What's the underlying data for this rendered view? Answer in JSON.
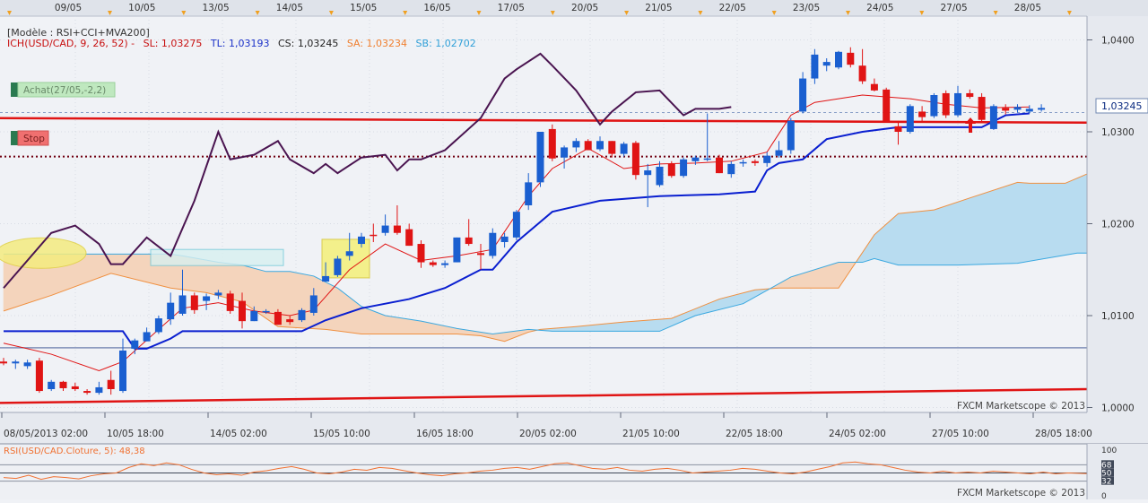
{
  "top_dates": [
    "09/05",
    "10/05",
    "13/05",
    "14/05",
    "15/05",
    "16/05",
    "17/05",
    "20/05",
    "21/05",
    "22/05",
    "23/05",
    "24/05",
    "27/05",
    "28/05"
  ],
  "info": {
    "model": "[Modèle : RSI+CCI+MVA200]",
    "ich_prefix": "ICH(USD/CAD, 9, 26, 52)  -",
    "sl": "SL: 1,03275",
    "tl": "TL: 1,03193",
    "cs": "CS: 1,03245",
    "sa": "SA: 1,03234",
    "sb": "SB: 1,02702"
  },
  "signals": {
    "buy": "Achat(27/05,-2,2)",
    "stop": "Stop"
  },
  "watermark": "FXCM Marketscope © 2013",
  "price_tag": "1,03245",
  "colors": {
    "bull": "#1a5fd0",
    "bear": "#e01414",
    "tenkan": "#e01414",
    "kijun": "#0a1fd0",
    "chikou": "#4a1450",
    "senkou_a": "#f09040",
    "senkou_b": "#3aa8e0",
    "cloud_bull": "#b8dcf0",
    "cloud_bear": "#f4d4bc",
    "grid": "#d8dce4"
  },
  "bottom_labels": [
    "08/05/2013 02:00",
    "10/05 18:00",
    "14/05 02:00",
    "15/05 10:00",
    "16/05 18:00",
    "20/05 02:00",
    "21/05 10:00",
    "22/05 18:00",
    "24/05 02:00",
    "27/05 10:00",
    "28/05 18:00"
  ],
  "rsi": {
    "label": "RSI(USD/CAD.Cloture, 5): 48,38",
    "ticks": [
      "100",
      "68",
      "50",
      "32",
      "0"
    ]
  },
  "chart_data": {
    "type": "candlestick",
    "symbol": "USD/CAD",
    "ylim": [
      0.9995,
      1.0425
    ],
    "y_ticks": [
      "1,0400",
      "1,0300",
      "1,0200",
      "1,0100",
      "1,0000"
    ],
    "candles": [
      {
        "o": 1.005,
        "h": 1.0054,
        "l": 1.0046,
        "c": 1.0048
      },
      {
        "o": 1.0048,
        "h": 1.0052,
        "l": 1.0042,
        "c": 1.005
      },
      {
        "o": 1.0045,
        "h": 1.0052,
        "l": 1.0042,
        "c": 1.0049
      },
      {
        "o": 1.0051,
        "h": 1.0054,
        "l": 1.0016,
        "c": 1.0018
      },
      {
        "o": 1.002,
        "h": 1.003,
        "l": 1.0018,
        "c": 1.0028
      },
      {
        "o": 1.0028,
        "h": 1.0029,
        "l": 1.0018,
        "c": 1.0021
      },
      {
        "o": 1.0023,
        "h": 1.0027,
        "l": 1.0018,
        "c": 1.002
      },
      {
        "o": 1.0018,
        "h": 1.002,
        "l": 1.0014,
        "c": 1.0016
      },
      {
        "o": 1.0016,
        "h": 1.0028,
        "l": 1.0014,
        "c": 1.0022
      },
      {
        "o": 1.003,
        "h": 1.004,
        "l": 1.0014,
        "c": 1.002
      },
      {
        "o": 1.0018,
        "h": 1.0075,
        "l": 1.0016,
        "c": 1.0062
      },
      {
        "o": 1.0064,
        "h": 1.0075,
        "l": 1.0058,
        "c": 1.0073
      },
      {
        "o": 1.0072,
        "h": 1.0087,
        "l": 1.0072,
        "c": 1.0082
      },
      {
        "o": 1.0082,
        "h": 1.01,
        "l": 1.008,
        "c": 1.0097
      },
      {
        "o": 1.0096,
        "h": 1.0125,
        "l": 1.009,
        "c": 1.0114
      },
      {
        "o": 1.0102,
        "h": 1.015,
        "l": 1.01,
        "c": 1.0122
      },
      {
        "o": 1.0122,
        "h": 1.0125,
        "l": 1.0102,
        "c": 1.0106
      },
      {
        "o": 1.0116,
        "h": 1.0124,
        "l": 1.0106,
        "c": 1.0121
      },
      {
        "o": 1.0122,
        "h": 1.0128,
        "l": 1.0118,
        "c": 1.0125
      },
      {
        "o": 1.0124,
        "h": 1.0127,
        "l": 1.0102,
        "c": 1.0105
      },
      {
        "o": 1.0116,
        "h": 1.0125,
        "l": 1.0086,
        "c": 1.0094
      },
      {
        "o": 1.0094,
        "h": 1.011,
        "l": 1.0094,
        "c": 1.0105
      },
      {
        "o": 1.0104,
        "h": 1.0107,
        "l": 1.0102,
        "c": 1.0105
      },
      {
        "o": 1.0104,
        "h": 1.0107,
        "l": 1.009,
        "c": 1.009
      },
      {
        "o": 1.0096,
        "h": 1.01,
        "l": 1.009,
        "c": 1.0093
      },
      {
        "o": 1.0095,
        "h": 1.0108,
        "l": 1.0093,
        "c": 1.0106
      },
      {
        "o": 1.0103,
        "h": 1.013,
        "l": 1.01,
        "c": 1.0122
      },
      {
        "o": 1.0137,
        "h": 1.0158,
        "l": 1.0137,
        "c": 1.0143
      },
      {
        "o": 1.0144,
        "h": 1.0165,
        "l": 1.0142,
        "c": 1.0162
      },
      {
        "o": 1.0165,
        "h": 1.019,
        "l": 1.016,
        "c": 1.017
      },
      {
        "o": 1.0178,
        "h": 1.019,
        "l": 1.0174,
        "c": 1.0186
      },
      {
        "o": 1.0188,
        "h": 1.02,
        "l": 1.018,
        "c": 1.0187
      },
      {
        "o": 1.019,
        "h": 1.021,
        "l": 1.0187,
        "c": 1.0198
      },
      {
        "o": 1.0198,
        "h": 1.022,
        "l": 1.0188,
        "c": 1.019
      },
      {
        "o": 1.0194,
        "h": 1.02,
        "l": 1.0176,
        "c": 1.0176
      },
      {
        "o": 1.0178,
        "h": 1.0182,
        "l": 1.0152,
        "c": 1.0158
      },
      {
        "o": 1.0158,
        "h": 1.016,
        "l": 1.0153,
        "c": 1.0155
      },
      {
        "o": 1.0155,
        "h": 1.016,
        "l": 1.0152,
        "c": 1.0157
      },
      {
        "o": 1.0158,
        "h": 1.0185,
        "l": 1.0158,
        "c": 1.0185
      },
      {
        "o": 1.0185,
        "h": 1.0205,
        "l": 1.0176,
        "c": 1.0178
      },
      {
        "o": 1.0168,
        "h": 1.0178,
        "l": 1.015,
        "c": 1.0166
      },
      {
        "o": 1.0165,
        "h": 1.0195,
        "l": 1.0162,
        "c": 1.019
      },
      {
        "o": 1.018,
        "h": 1.019,
        "l": 1.0174,
        "c": 1.0186
      },
      {
        "o": 1.0185,
        "h": 1.0215,
        "l": 1.0182,
        "c": 1.0213
      },
      {
        "o": 1.022,
        "h": 1.0255,
        "l": 1.0215,
        "c": 1.0245
      },
      {
        "o": 1.0245,
        "h": 1.03,
        "l": 1.024,
        "c": 1.03
      },
      {
        "o": 1.0303,
        "h": 1.0308,
        "l": 1.0268,
        "c": 1.0271
      },
      {
        "o": 1.0272,
        "h": 1.0285,
        "l": 1.026,
        "c": 1.0283
      },
      {
        "o": 1.0283,
        "h": 1.0293,
        "l": 1.0278,
        "c": 1.029
      },
      {
        "o": 1.029,
        "h": 1.0292,
        "l": 1.028,
        "c": 1.028
      },
      {
        "o": 1.0281,
        "h": 1.0295,
        "l": 1.0279,
        "c": 1.029
      },
      {
        "o": 1.029,
        "h": 1.029,
        "l": 1.0272,
        "c": 1.0276
      },
      {
        "o": 1.0276,
        "h": 1.0289,
        "l": 1.0273,
        "c": 1.0287
      },
      {
        "o": 1.0288,
        "h": 1.029,
        "l": 1.0248,
        "c": 1.0253
      },
      {
        "o": 1.0253,
        "h": 1.0265,
        "l": 1.0218,
        "c": 1.0258
      },
      {
        "o": 1.0242,
        "h": 1.0268,
        "l": 1.024,
        "c": 1.0262
      },
      {
        "o": 1.0265,
        "h": 1.0268,
        "l": 1.025,
        "c": 1.0252
      },
      {
        "o": 1.0252,
        "h": 1.0272,
        "l": 1.025,
        "c": 1.027
      },
      {
        "o": 1.0268,
        "h": 1.0274,
        "l": 1.0264,
        "c": 1.0272
      },
      {
        "o": 1.027,
        "h": 1.032,
        "l": 1.0268,
        "c": 1.0271
      },
      {
        "o": 1.0272,
        "h": 1.0275,
        "l": 1.0255,
        "c": 1.0255
      },
      {
        "o": 1.0254,
        "h": 1.0268,
        "l": 1.025,
        "c": 1.0265
      },
      {
        "o": 1.0266,
        "h": 1.027,
        "l": 1.0262,
        "c": 1.0267
      },
      {
        "o": 1.0268,
        "h": 1.027,
        "l": 1.0263,
        "c": 1.0266
      },
      {
        "o": 1.0266,
        "h": 1.0278,
        "l": 1.0262,
        "c": 1.0274
      },
      {
        "o": 1.0274,
        "h": 1.029,
        "l": 1.0272,
        "c": 1.028
      },
      {
        "o": 1.028,
        "h": 1.0315,
        "l": 1.0276,
        "c": 1.0312
      },
      {
        "o": 1.0322,
        "h": 1.0365,
        "l": 1.032,
        "c": 1.0358
      },
      {
        "o": 1.0358,
        "h": 1.039,
        "l": 1.0352,
        "c": 1.0384
      },
      {
        "o": 1.0372,
        "h": 1.038,
        "l": 1.0366,
        "c": 1.0376
      },
      {
        "o": 1.037,
        "h": 1.0388,
        "l": 1.0368,
        "c": 1.0387
      },
      {
        "o": 1.0386,
        "h": 1.0392,
        "l": 1.037,
        "c": 1.0373
      },
      {
        "o": 1.0372,
        "h": 1.039,
        "l": 1.0352,
        "c": 1.0355
      },
      {
        "o": 1.0352,
        "h": 1.0358,
        "l": 1.0344,
        "c": 1.0345
      },
      {
        "o": 1.0346,
        "h": 1.0348,
        "l": 1.031,
        "c": 1.0312
      },
      {
        "o": 1.0306,
        "h": 1.0312,
        "l": 1.0286,
        "c": 1.03
      },
      {
        "o": 1.03,
        "h": 1.033,
        "l": 1.0298,
        "c": 1.0328
      },
      {
        "o": 1.0322,
        "h": 1.0328,
        "l": 1.031,
        "c": 1.0316
      },
      {
        "o": 1.0317,
        "h": 1.0342,
        "l": 1.0315,
        "c": 1.034
      },
      {
        "o": 1.0342,
        "h": 1.0345,
        "l": 1.0315,
        "c": 1.0318
      },
      {
        "o": 1.0318,
        "h": 1.035,
        "l": 1.0316,
        "c": 1.0342
      },
      {
        "o": 1.0342,
        "h": 1.0346,
        "l": 1.0336,
        "c": 1.0338
      },
      {
        "o": 1.0338,
        "h": 1.0342,
        "l": 1.031,
        "c": 1.0313
      },
      {
        "o": 1.0303,
        "h": 1.033,
        "l": 1.0302,
        "c": 1.0328
      },
      {
        "o": 1.0326,
        "h": 1.033,
        "l": 1.0319,
        "c": 1.0323
      },
      {
        "o": 1.0324,
        "h": 1.033,
        "l": 1.0321,
        "c": 1.0327
      },
      {
        "o": 1.0322,
        "h": 1.0329,
        "l": 1.032,
        "c": 1.0325
      },
      {
        "o": 1.0324,
        "h": 1.033,
        "l": 1.0322,
        "c": 1.0326
      }
    ],
    "tenkan": [
      [
        0,
        1.007
      ],
      [
        4,
        1.0058
      ],
      [
        8,
        1.004
      ],
      [
        10,
        1.005
      ],
      [
        13,
        1.0085
      ],
      [
        15,
        1.0108
      ],
      [
        18,
        1.0114
      ],
      [
        21,
        1.0105
      ],
      [
        24,
        1.01
      ],
      [
        26,
        1.0106
      ],
      [
        29,
        1.015
      ],
      [
        32,
        1.0178
      ],
      [
        35,
        1.016
      ],
      [
        38,
        1.0165
      ],
      [
        41,
        1.0172
      ],
      [
        44,
        1.023
      ],
      [
        46,
        1.026
      ],
      [
        49,
        1.0282
      ],
      [
        52,
        1.026
      ],
      [
        55,
        1.0265
      ],
      [
        58,
        1.0266
      ],
      [
        61,
        1.0268
      ],
      [
        64,
        1.0278
      ],
      [
        66,
        1.0318
      ],
      [
        68,
        1.0332
      ],
      [
        72,
        1.034
      ],
      [
        76,
        1.0336
      ],
      [
        79,
        1.033
      ],
      [
        82,
        1.0326
      ],
      [
        86,
        1.0327
      ]
    ],
    "kijun": [
      [
        0,
        1.0083
      ],
      [
        10,
        1.0083
      ],
      [
        11,
        1.0064
      ],
      [
        12,
        1.0064
      ],
      [
        14,
        1.0075
      ],
      [
        15,
        1.0083
      ],
      [
        21,
        1.0083
      ],
      [
        25,
        1.0083
      ],
      [
        27,
        1.0095
      ],
      [
        30,
        1.0108
      ],
      [
        34,
        1.0118
      ],
      [
        37,
        1.013
      ],
      [
        40,
        1.015
      ],
      [
        41,
        1.015
      ],
      [
        43,
        1.018
      ],
      [
        46,
        1.0213
      ],
      [
        50,
        1.0225
      ],
      [
        55,
        1.023
      ],
      [
        60,
        1.0232
      ],
      [
        63,
        1.0235
      ],
      [
        64,
        1.0258
      ],
      [
        65,
        1.0266
      ],
      [
        67,
        1.027
      ],
      [
        69,
        1.0292
      ],
      [
        72,
        1.03
      ],
      [
        75,
        1.0305
      ],
      [
        79,
        1.0305
      ],
      [
        82,
        1.0305
      ],
      [
        84,
        1.0318
      ],
      [
        86,
        1.032
      ]
    ],
    "chikou": [
      [
        0,
        1.013
      ],
      [
        4,
        1.019
      ],
      [
        6,
        1.0198
      ],
      [
        8,
        1.0178
      ],
      [
        9,
        1.0156
      ],
      [
        10,
        1.0156
      ],
      [
        12,
        1.0185
      ],
      [
        14,
        1.0165
      ],
      [
        16,
        1.0225
      ],
      [
        18,
        1.03
      ],
      [
        19,
        1.027
      ],
      [
        21,
        1.0275
      ],
      [
        23,
        1.029
      ],
      [
        24,
        1.027
      ],
      [
        26,
        1.0255
      ],
      [
        27,
        1.0265
      ],
      [
        28,
        1.0255
      ],
      [
        30,
        1.0272
      ],
      [
        32,
        1.0275
      ],
      [
        33,
        1.0258
      ],
      [
        34,
        1.027
      ],
      [
        35,
        1.027
      ],
      [
        37,
        1.028
      ],
      [
        40,
        1.0315
      ],
      [
        42,
        1.0358
      ],
      [
        43,
        1.0368
      ],
      [
        45,
        1.0385
      ],
      [
        46,
        1.0372
      ],
      [
        48,
        1.0345
      ],
      [
        50,
        1.0308
      ],
      [
        51,
        1.0322
      ],
      [
        53,
        1.0343
      ],
      [
        55,
        1.0345
      ],
      [
        57,
        1.0318
      ],
      [
        58,
        1.0325
      ],
      [
        60,
        1.0325
      ],
      [
        61,
        1.0327
      ]
    ],
    "senkou_a": [
      [
        0,
        1.0105
      ],
      [
        4,
        1.0122
      ],
      [
        9,
        1.0146
      ],
      [
        14,
        1.013
      ],
      [
        17,
        1.0125
      ],
      [
        20,
        1.0115
      ],
      [
        23,
        1.0088
      ],
      [
        27,
        1.0085
      ],
      [
        30,
        1.008
      ],
      [
        34,
        1.008
      ],
      [
        38,
        1.008
      ],
      [
        40,
        1.0078
      ],
      [
        42,
        1.0072
      ],
      [
        44,
        1.0082
      ],
      [
        45,
        1.0085
      ],
      [
        48,
        1.0088
      ],
      [
        52,
        1.0093
      ],
      [
        56,
        1.0097
      ],
      [
        60,
        1.0118
      ],
      [
        63,
        1.0128
      ],
      [
        65,
        1.013
      ],
      [
        70,
        1.013
      ],
      [
        73,
        1.0188
      ],
      [
        75,
        1.0211
      ],
      [
        78,
        1.0215
      ],
      [
        81,
        1.0228
      ],
      [
        85,
        1.0245
      ],
      [
        86,
        1.0244
      ],
      [
        89,
        1.0244
      ],
      [
        91,
        1.0255
      ],
      [
        93,
        1.0275
      ]
    ],
    "senkou_b": [
      [
        0,
        1.0167
      ],
      [
        14,
        1.0167
      ],
      [
        15,
        1.0165
      ],
      [
        18,
        1.0158
      ],
      [
        20,
        1.0155
      ],
      [
        22,
        1.0148
      ],
      [
        24,
        1.0148
      ],
      [
        26,
        1.0143
      ],
      [
        28,
        1.013
      ],
      [
        30,
        1.011
      ],
      [
        32,
        1.01
      ],
      [
        35,
        1.0094
      ],
      [
        38,
        1.0086
      ],
      [
        41,
        1.008
      ],
      [
        44,
        1.0085
      ],
      [
        46,
        1.0083
      ],
      [
        49,
        1.0083
      ],
      [
        52,
        1.0083
      ],
      [
        55,
        1.0083
      ],
      [
        58,
        1.01
      ],
      [
        62,
        1.0113
      ],
      [
        66,
        1.0142
      ],
      [
        70,
        1.0158
      ],
      [
        72,
        1.0158
      ],
      [
        73,
        1.0162
      ],
      [
        75,
        1.0155
      ],
      [
        80,
        1.0155
      ],
      [
        85,
        1.0157
      ],
      [
        90,
        1.0168
      ],
      [
        92,
        1.0168
      ],
      [
        93,
        1.0205
      ]
    ],
    "support_line": {
      "start": 1.0312,
      "end": 1.031
    },
    "stop_line": 1.0273,
    "dashed_line": 1.0321,
    "grey_line": 1.0065,
    "long_trend": {
      "start": 1.0005,
      "end": 1.002
    },
    "rsi_values": [
      40,
      38,
      45,
      36,
      42,
      40,
      37,
      44,
      48,
      50,
      62,
      70,
      66,
      72,
      68,
      58,
      50,
      46,
      48,
      45,
      52,
      55,
      60,
      64,
      58,
      50,
      48,
      52,
      58,
      56,
      62,
      60,
      55,
      50,
      46,
      44,
      48,
      50,
      54,
      56,
      60,
      62,
      58,
      64,
      70,
      72,
      66,
      60,
      58,
      62,
      56,
      54,
      58,
      60,
      56,
      50,
      52,
      54,
      56,
      60,
      58,
      54,
      50,
      48,
      52,
      58,
      64,
      72,
      74,
      70,
      68,
      62,
      56,
      52,
      50,
      54,
      50,
      52,
      50,
      54,
      52,
      50,
      48,
      52,
      48,
      50,
      49,
      48
    ]
  }
}
